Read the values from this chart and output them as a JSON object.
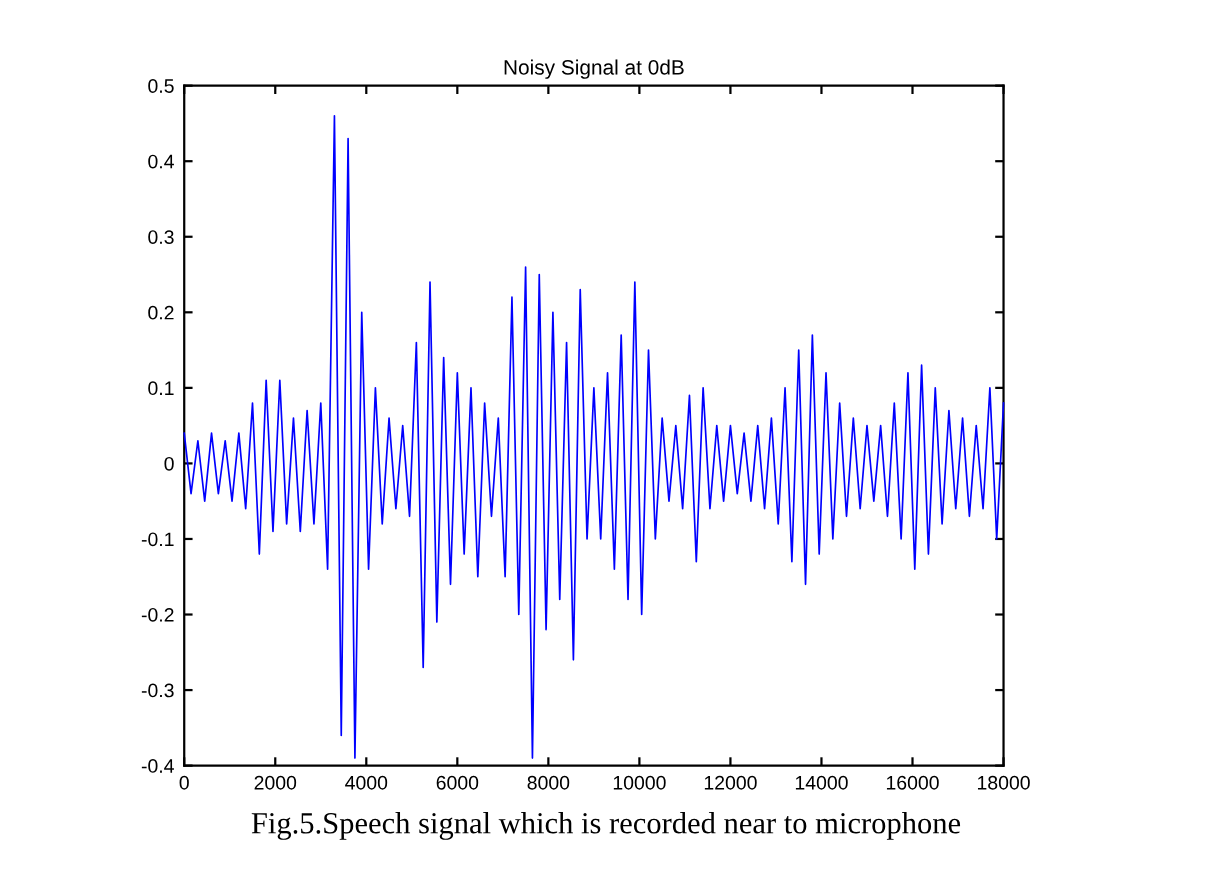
{
  "chart_data": {
    "type": "line",
    "title": "Noisy Signal at 0dB",
    "x": [
      0,
      150,
      300,
      450,
      600,
      750,
      900,
      1050,
      1200,
      1350,
      1500,
      1650,
      1800,
      1950,
      2100,
      2250,
      2400,
      2550,
      2700,
      2850,
      3000,
      3150,
      3300,
      3450,
      3600,
      3750,
      3900,
      4050,
      4200,
      4350,
      4500,
      4650,
      4800,
      4950,
      5100,
      5250,
      5400,
      5550,
      5700,
      5850,
      6000,
      6150,
      6300,
      6450,
      6600,
      6750,
      6900,
      7050,
      7200,
      7350,
      7500,
      7650,
      7800,
      7950,
      8100,
      8250,
      8400,
      8550,
      8700,
      8850,
      9000,
      9150,
      9300,
      9450,
      9600,
      9750,
      9900,
      10050,
      10200,
      10350,
      10500,
      10650,
      10800,
      10950,
      11100,
      11250,
      11400,
      11550,
      11700,
      11850,
      12000,
      12150,
      12300,
      12450,
      12600,
      12750,
      12900,
      13050,
      13200,
      13350,
      13500,
      13650,
      13800,
      13950,
      14100,
      14250,
      14400,
      14550,
      14700,
      14850,
      15000,
      15150,
      15300,
      15450,
      15600,
      15750,
      15900,
      16050,
      16200,
      16350,
      16500,
      16650,
      16800,
      16950,
      17100,
      17250,
      17400,
      17550,
      17700,
      17850,
      18000
    ],
    "series": [
      {
        "color": "#0000ff",
        "values": [
          0.04,
          -0.04,
          0.03,
          -0.05,
          0.04,
          -0.04,
          0.03,
          -0.05,
          0.04,
          -0.06,
          0.08,
          -0.12,
          0.11,
          -0.09,
          0.11,
          -0.08,
          0.06,
          -0.09,
          0.07,
          -0.08,
          0.08,
          -0.14,
          0.46,
          -0.36,
          0.43,
          -0.39,
          0.2,
          -0.14,
          0.1,
          -0.08,
          0.06,
          -0.06,
          0.05,
          -0.07,
          0.16,
          -0.27,
          0.24,
          -0.21,
          0.14,
          -0.16,
          0.12,
          -0.12,
          0.1,
          -0.15,
          0.08,
          -0.07,
          0.06,
          -0.15,
          0.22,
          -0.2,
          0.26,
          -0.39,
          0.25,
          -0.22,
          0.2,
          -0.18,
          0.16,
          -0.26,
          0.23,
          -0.1,
          0.1,
          -0.1,
          0.12,
          -0.14,
          0.17,
          -0.18,
          0.24,
          -0.2,
          0.15,
          -0.1,
          0.06,
          -0.05,
          0.05,
          -0.06,
          0.09,
          -0.13,
          0.1,
          -0.06,
          0.05,
          -0.05,
          0.05,
          -0.04,
          0.04,
          -0.05,
          0.05,
          -0.06,
          0.06,
          -0.08,
          0.1,
          -0.13,
          0.15,
          -0.16,
          0.17,
          -0.12,
          0.12,
          -0.1,
          0.08,
          -0.07,
          0.06,
          -0.06,
          0.05,
          -0.05,
          0.05,
          -0.07,
          0.08,
          -0.1,
          0.12,
          -0.14,
          0.13,
          -0.12,
          0.1,
          -0.08,
          0.07,
          -0.06,
          0.06,
          -0.07,
          0.05,
          -0.06,
          0.1,
          -0.1,
          0.08
        ]
      }
    ],
    "xlim": [
      0,
      18000
    ],
    "xticks": [
      0,
      2000,
      4000,
      6000,
      8000,
      10000,
      12000,
      14000,
      16000,
      18000
    ],
    "ylim": [
      -0.4,
      0.5
    ],
    "yticks": [
      {
        "value": -0.4,
        "label": "-0.4"
      },
      {
        "value": -0.3,
        "label": "-0.3"
      },
      {
        "value": -0.2,
        "label": "-0.2"
      },
      {
        "value": -0.1,
        "label": "-0.1"
      },
      0,
      0.1,
      0.2,
      0.3,
      0.4,
      0.5
    ],
    "grid": false,
    "legend": false,
    "annotations": [
      "Fig.5.Speech signal which is recorded near to microphone"
    ]
  }
}
